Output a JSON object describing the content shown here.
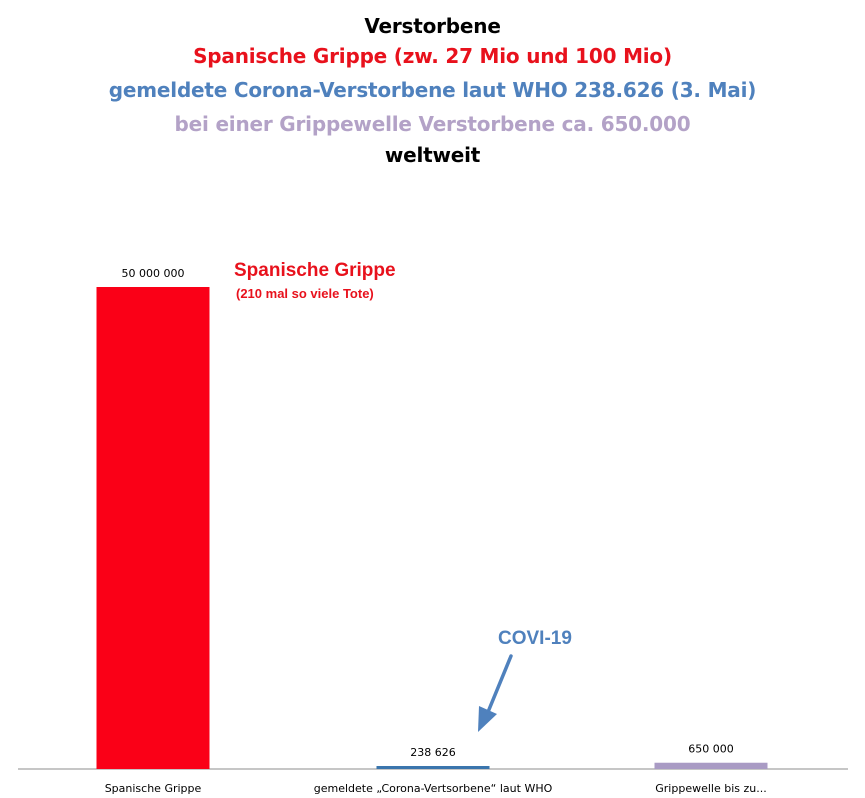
{
  "title_lines": [
    {
      "text": "Verstorbene",
      "color": "#000000"
    },
    {
      "text": "Spanische Grippe (zw. 27 Mio und 100 Mio)",
      "color": "#e8111c"
    },
    {
      "text": "gemeldete Corona-Verstorbene laut WHO 238.626 (3. Mai)",
      "color": "#4f81bd"
    },
    {
      "text": "bei einer Grippewelle Verstorbene ca. 650.000",
      "color": "#b3a2c7"
    },
    {
      "text": "weltweit",
      "color": "#000000"
    }
  ],
  "chart_data": {
    "type": "bar",
    "categories": [
      "Spanische Grippe",
      "gemeldete „Corona-Vertsorbene“ laut WHO",
      "Grippewelle bis zu..."
    ],
    "values": [
      50000000,
      238626,
      650000
    ],
    "value_labels": [
      "50 000 000",
      "238 626",
      "650 000"
    ],
    "colors": [
      "#fa0017",
      "#3a75ad",
      "#a99bc4"
    ],
    "ylim": [
      0,
      50000000
    ],
    "grid": false,
    "annotations": [
      {
        "text": "Spanische Grippe",
        "sub": "(210 mal so viele Tote)",
        "color": "#e8111c"
      },
      {
        "text": "COVI-19",
        "color": "#4f81bd",
        "arrow": true
      }
    ]
  }
}
